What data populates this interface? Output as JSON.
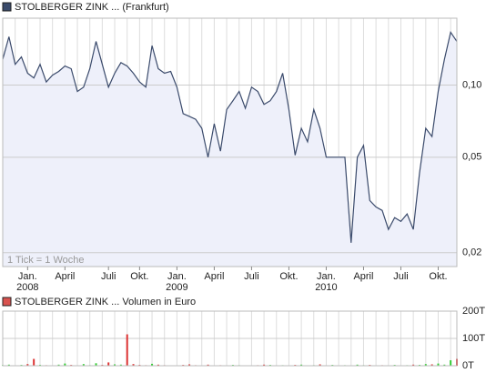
{
  "chart_data": [
    {
      "type": "line",
      "title": "STOLBERGER ZINK ... (Frankfurt)",
      "annotation": "1 Tick = 1 Woche",
      "color": "#3a4a6b",
      "area_color": "#eef0fa",
      "log_scale": true,
      "grid": true,
      "categories": [
        null,
        null,
        null,
        null,
        "Jan.\n2008",
        null,
        null,
        null,
        null,
        null,
        "April",
        null,
        null,
        null,
        null,
        null,
        null,
        "Juli",
        null,
        null,
        null,
        null,
        "Okt.",
        null,
        null,
        null,
        null,
        null,
        "Jan.\n2009",
        null,
        null,
        null,
        null,
        null,
        "April",
        null,
        null,
        null,
        null,
        null,
        "Juli",
        null,
        null,
        null,
        null,
        null,
        "Okt.",
        null,
        null,
        null,
        null,
        null,
        "Jan.\n2010",
        null,
        null,
        null,
        null,
        null,
        "April",
        null,
        null,
        null,
        null,
        null,
        "Juli",
        null,
        null,
        null,
        null,
        null,
        "Okt.",
        null,
        null,
        null
      ],
      "values": [
        0.128,
        0.159,
        0.122,
        0.131,
        0.112,
        0.107,
        0.122,
        0.103,
        0.11,
        0.114,
        0.12,
        0.117,
        0.094,
        0.098,
        0.117,
        0.152,
        0.122,
        0.098,
        0.112,
        0.124,
        0.12,
        0.112,
        0.103,
        0.098,
        0.146,
        0.117,
        0.112,
        0.114,
        0.098,
        0.076,
        0.074,
        0.072,
        0.066,
        0.05,
        0.069,
        0.053,
        0.079,
        0.086,
        0.094,
        0.08,
        0.098,
        0.094,
        0.083,
        0.086,
        0.094,
        0.112,
        0.079,
        0.051,
        0.066,
        0.058,
        0.079,
        0.066,
        0.05,
        0.05,
        0.05,
        0.05,
        0.022,
        0.05,
        0.056,
        0.033,
        0.031,
        0.03,
        0.025,
        0.028,
        0.027,
        0.029,
        0.025,
        0.043,
        0.066,
        0.061,
        0.094,
        0.128,
        0.166,
        0.152
      ],
      "ylim": [
        0.0175,
        0.19
      ],
      "yticks": [
        {
          "value": 0.02,
          "label": "0,02"
        },
        {
          "value": 0.05,
          "label": "0,05"
        },
        {
          "value": 0.1,
          "label": "0,10"
        }
      ]
    },
    {
      "type": "bar",
      "title": "STOLBERGER ZINK ... Volumen in Euro",
      "legend_color": "#d9534f",
      "up_color": "#33cc33",
      "down_color": "#dd3333",
      "grid": true,
      "values": [
        2000,
        4000,
        1500,
        3000,
        6000,
        25000,
        3000,
        2000,
        1000,
        4000,
        8000,
        3000,
        1500,
        6000,
        2000,
        9000,
        3000,
        12000,
        5000,
        4000,
        115000,
        6000,
        3000,
        2000,
        7000,
        4000,
        2000,
        1500,
        1000,
        3000,
        5000,
        2000,
        1000,
        4000,
        1500,
        2000,
        1000,
        3000,
        2000,
        1000,
        1500,
        2000,
        4000,
        3000,
        1000,
        2000,
        1500,
        3000,
        4000,
        1000,
        2000,
        5000,
        1000,
        3000,
        1500,
        2000,
        1000,
        4000,
        2000,
        3000,
        1000,
        2000,
        1500,
        3000,
        1000,
        2000,
        4000,
        3000,
        6000,
        5000,
        8000,
        4000,
        20000,
        25000
      ],
      "ylim": [
        0,
        200000
      ],
      "yticks": [
        {
          "value": 0,
          "label": "0T"
        },
        {
          "value": 100000,
          "label": "100T"
        },
        {
          "value": 200000,
          "label": "200T"
        }
      ]
    }
  ]
}
